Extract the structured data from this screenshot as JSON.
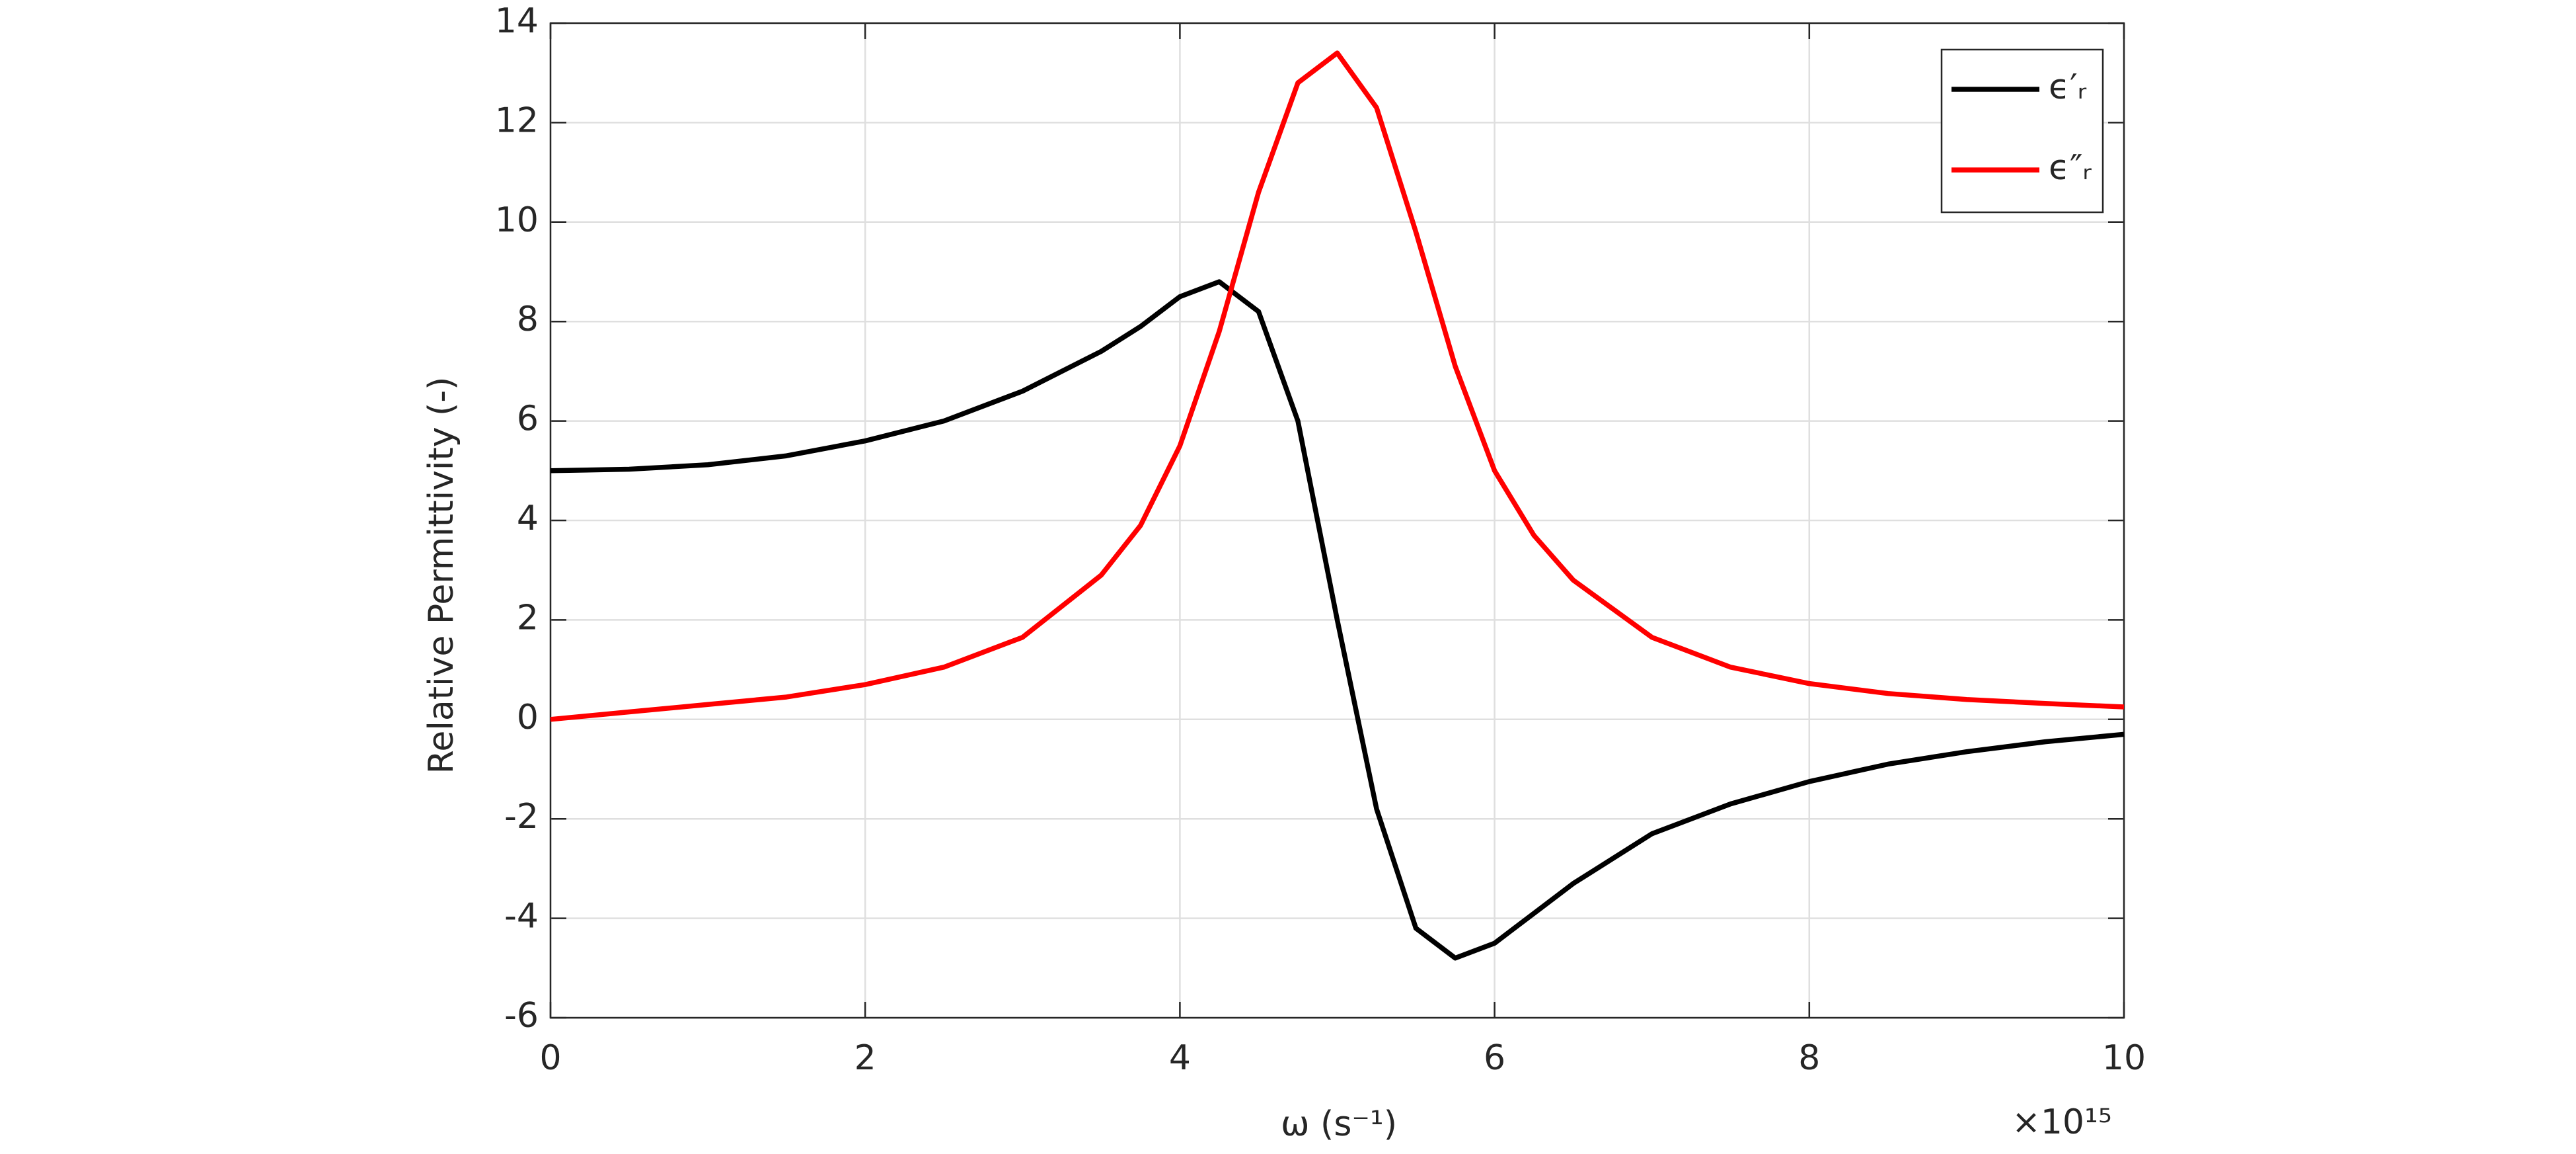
{
  "chart_data": {
    "type": "line",
    "xlabel": "ω  (s⁻¹)",
    "ylabel": "Relative Permittivity (-)",
    "x_multiplier": "×10¹⁵",
    "x": [
      0,
      0.5,
      1,
      1.5,
      2,
      2.5,
      3,
      3.5,
      3.75,
      4,
      4.25,
      4.5,
      4.75,
      5,
      5.25,
      5.5,
      5.75,
      6,
      6.25,
      6.5,
      7,
      7.5,
      8,
      8.5,
      9,
      9.5,
      10
    ],
    "series": [
      {
        "name": "ϵ′ᵣ",
        "color": "#000000",
        "values": [
          5.0,
          5.03,
          5.12,
          5.3,
          5.6,
          6.0,
          6.6,
          7.4,
          7.9,
          8.5,
          8.8,
          8.2,
          6.0,
          2.0,
          -1.8,
          -4.2,
          -4.8,
          -4.5,
          -3.9,
          -3.3,
          -2.3,
          -1.7,
          -1.25,
          -0.9,
          -0.65,
          -0.45,
          -0.3
        ]
      },
      {
        "name": "ϵ″ᵣ",
        "color": "#ff0000",
        "values": [
          0,
          0.15,
          0.3,
          0.45,
          0.7,
          1.05,
          1.65,
          2.9,
          3.9,
          5.5,
          7.8,
          10.6,
          12.8,
          13.4,
          12.3,
          9.8,
          7.1,
          5.0,
          3.7,
          2.8,
          1.65,
          1.05,
          0.72,
          0.52,
          0.4,
          0.32,
          0.25
        ]
      }
    ],
    "xlim": [
      0,
      10
    ],
    "xticks": [
      0,
      2,
      4,
      6,
      8,
      10
    ],
    "ylim": [
      -6,
      14
    ],
    "yticks": [
      -6,
      -4,
      -2,
      0,
      2,
      4,
      6,
      8,
      10,
      12,
      14
    ],
    "grid": true,
    "legend": "top-right"
  }
}
